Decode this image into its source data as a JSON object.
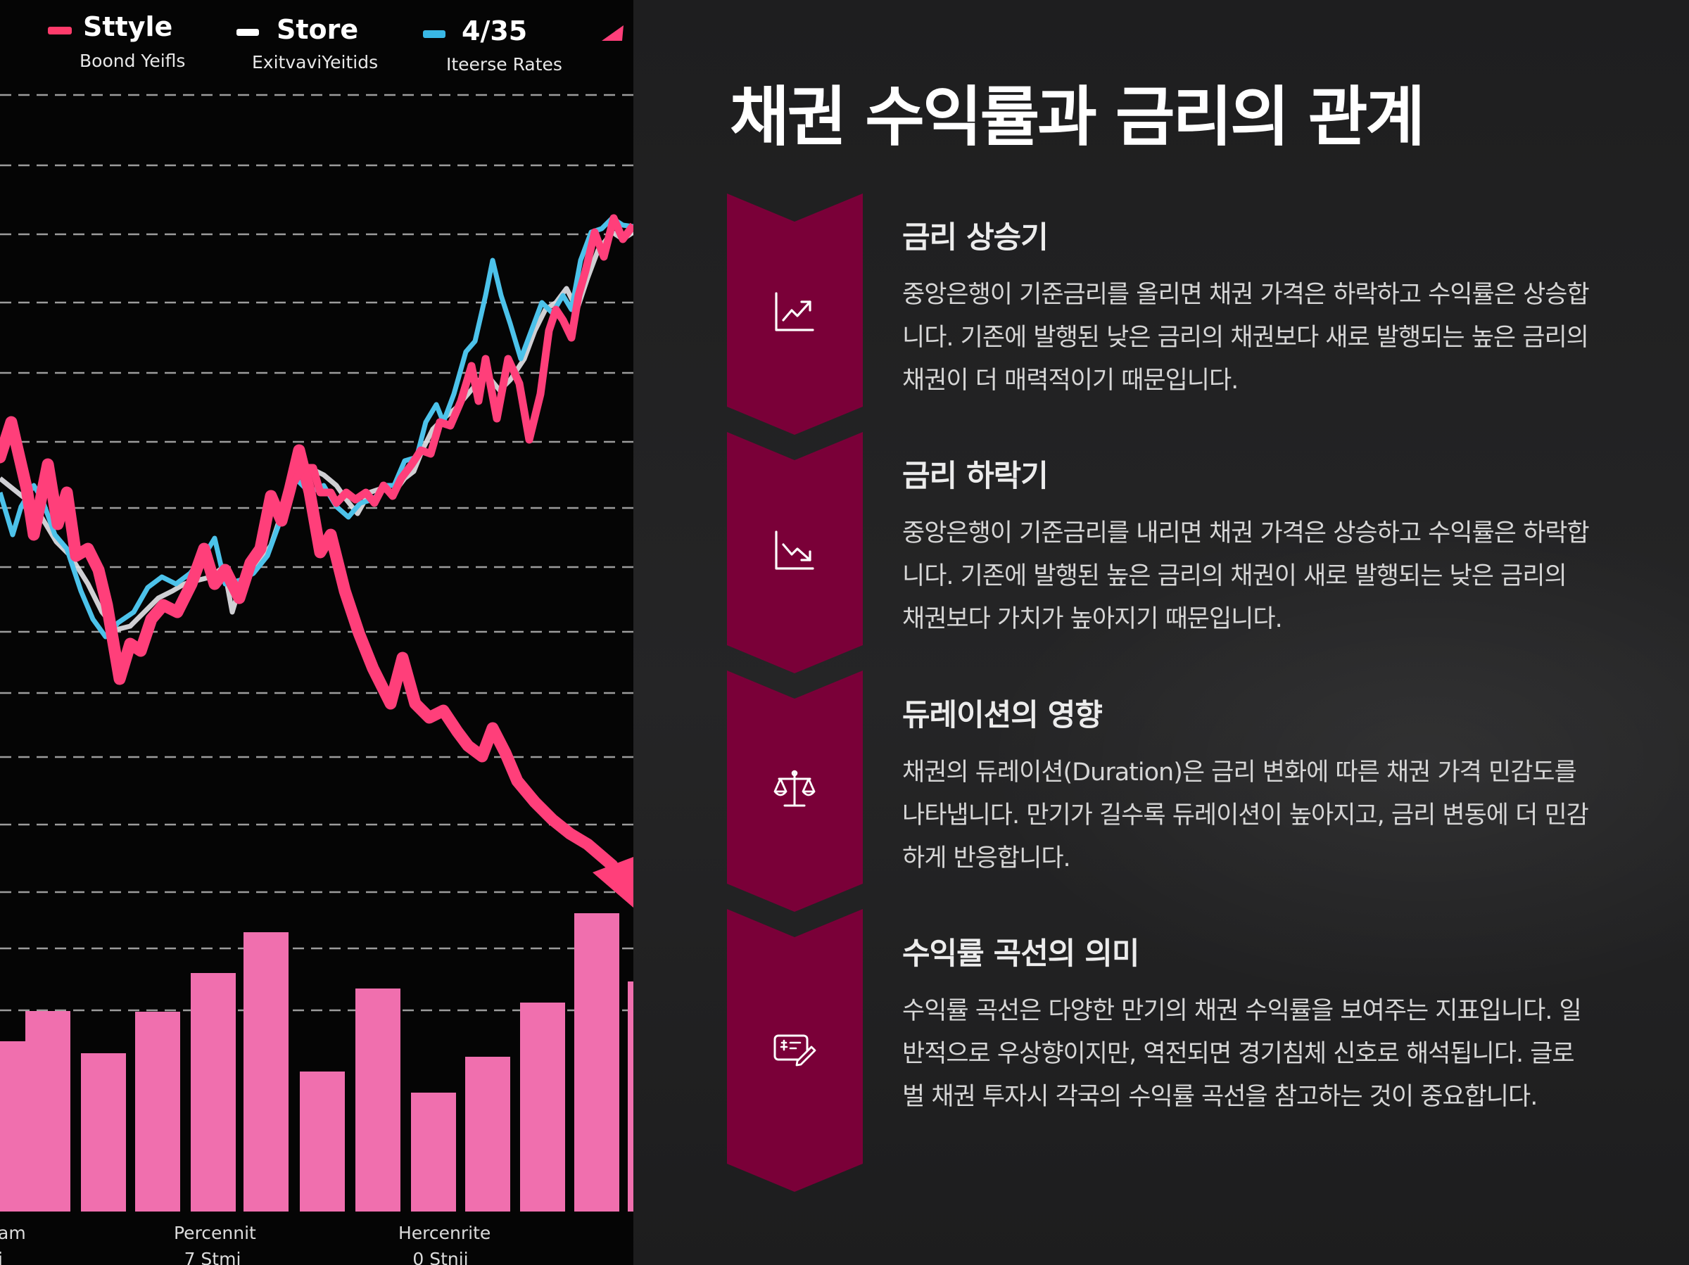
{
  "image_panel": {
    "legend": [
      {
        "title": "Sttyle",
        "subtitle": "Boond Yeifls",
        "swatch_color": "#ff3b6b"
      },
      {
        "title": "Store",
        "subtitle": "ExitvaviYeitids",
        "swatch_color": "#ffffff"
      },
      {
        "title": "4/35",
        "subtitle": "Iteerse Rates",
        "swatch_color": "#39b8e6"
      }
    ],
    "axis_labels": [
      {
        "line1": "am",
        "line2": "i"
      },
      {
        "line1": "Percennit",
        "line2": "7 Stmi"
      },
      {
        "line1": "Hercenrite",
        "line2": "0 Stnii"
      }
    ],
    "colors": {
      "red_line": "#ff3f7a",
      "blue_line": "#4cc2ea",
      "white_line": "#e6e6ea",
      "bars": "#f06fae"
    }
  },
  "page_title": "채권 수익률과 금리의 관계",
  "accent_color": "#7a0038",
  "steps": [
    {
      "icon": "trending-up-icon",
      "title": "금리 상승기",
      "body": "중앙은행이 기준금리를 올리면 채권 가격은 하락하고 수익률은 상승합니다. 기존에 발행된 낮은 금리의 채권보다 새로 발행되는 높은 금리의 채권이 더 매력적이기 때문입니다."
    },
    {
      "icon": "trending-down-icon",
      "title": "금리 하락기",
      "body": "중앙은행이 기준금리를 내리면 채권 가격은 상승하고 수익률은 하락합니다. 기존에 발행된 높은 금리의 채권이 새로 발행되는 낮은 금리의 채권보다 가치가 높아지기 때문입니다."
    },
    {
      "icon": "scale-icon",
      "title": "듀레이션의 영향",
      "body": "채권의 듀레이션(Duration)은 금리 변화에 따른 채권 가격 민감도를 나타냅니다. 만기가 길수록 듀레이션이 높아지고, 금리 변동에 더 민감하게 반응합니다."
    },
    {
      "icon": "receipt-pen-icon",
      "title": "수익률 곡선의 의미",
      "body": "수익률 곡선은 다양한 만기의 채권 수익률을 보여주는 지표입니다. 일반적으로 우상향이지만, 역전되면 경기침체 신호로 해석됩니다. 글로벌 채권 투자시 각국의 수익률 곡선을 참고하는 것이 중요합니다."
    }
  ]
}
